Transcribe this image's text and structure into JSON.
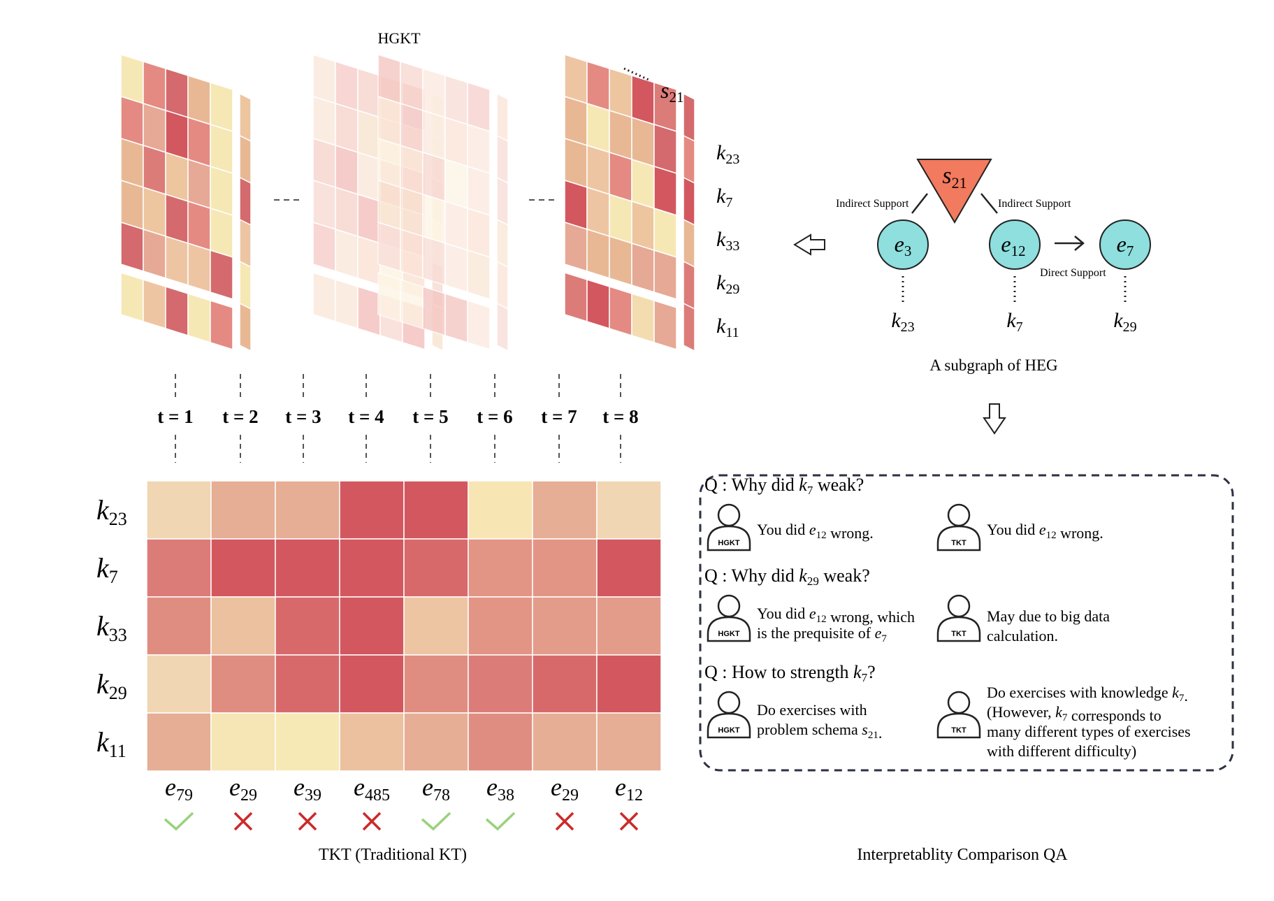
{
  "top": {
    "title": "HGKT",
    "skill_labels": [
      {
        "base": "k",
        "sub": "23"
      },
      {
        "base": "k",
        "sub": "7"
      },
      {
        "base": "k",
        "sub": "33"
      },
      {
        "base": "k",
        "sub": "29"
      },
      {
        "base": "k",
        "sub": "11"
      }
    ],
    "schema_label": {
      "base": "s",
      "sub": "21"
    },
    "steps": [
      "t = 1",
      "t = 2",
      "t = 3",
      "t = 4",
      "t = 5",
      "t = 6",
      "t = 7",
      "t = 8"
    ]
  },
  "heg": {
    "schema_node": {
      "base": "s",
      "sub": "21"
    },
    "exercises": [
      {
        "base": "e",
        "sub": "3"
      },
      {
        "base": "e",
        "sub": "12"
      },
      {
        "base": "e",
        "sub": "7"
      }
    ],
    "knowledge": [
      {
        "base": "k",
        "sub": "23"
      },
      {
        "base": "k",
        "sub": "7"
      },
      {
        "base": "k",
        "sub": "29"
      }
    ],
    "edge_left": "Indirect Support",
    "edge_right": "Indirect Support",
    "edge_direct": "Direct Support",
    "caption": "A subgraph of HEG"
  },
  "heatmap": {
    "rows": [
      {
        "base": "k",
        "sub": "23"
      },
      {
        "base": "k",
        "sub": "7"
      },
      {
        "base": "k",
        "sub": "33"
      },
      {
        "base": "k",
        "sub": "29"
      },
      {
        "base": "k",
        "sub": "11"
      }
    ],
    "cols": [
      {
        "base": "e",
        "sub": "79",
        "correct": true
      },
      {
        "base": "e",
        "sub": "29",
        "correct": false
      },
      {
        "base": "e",
        "sub": "39",
        "correct": false
      },
      {
        "base": "e",
        "sub": "485",
        "correct": false
      },
      {
        "base": "e",
        "sub": "78",
        "correct": true
      },
      {
        "base": "e",
        "sub": "38",
        "correct": true
      },
      {
        "base": "e",
        "sub": "29",
        "correct": false
      },
      {
        "base": "e",
        "sub": "12",
        "correct": false
      }
    ],
    "colors": [
      [
        "#f0d6b3",
        "#e6ae95",
        "#e6ae95",
        "#d3575f",
        "#d3575f",
        "#f7e5b4",
        "#e6ae95",
        "#f0d6b3"
      ],
      [
        "#dc7c79",
        "#d3575f",
        "#d3575f",
        "#d3575f",
        "#d8696b",
        "#e39585",
        "#e39585",
        "#d3575f"
      ],
      [
        "#e08d81",
        "#ebc19f",
        "#d8696b",
        "#d3575f",
        "#eec5a3",
        "#e39585",
        "#e39c8a",
        "#e39c8a"
      ],
      [
        "#f0d6b3",
        "#e08d81",
        "#d8696b",
        "#d3575f",
        "#e08d81",
        "#dc7c79",
        "#d8696b",
        "#d3575f"
      ],
      [
        "#e6ae95",
        "#f6e6b5",
        "#f7e9b5",
        "#ebc19f",
        "#e6ae95",
        "#e08d81",
        "#e6ae95",
        "#e6ae95"
      ]
    ],
    "caption": "TKT (Traditional KT)"
  },
  "qa": {
    "caption": "Interpretablity Comparison QA",
    "badge_hgkt": "HGKT",
    "badge_tkt": "TKT",
    "items": [
      {
        "q_pre": "Q : Why did ",
        "q_base": "k",
        "q_sub": "7",
        "q_post": " weak?",
        "hgkt": [
          "You did e12 wrong."
        ],
        "tkt": [
          "You did e12 wrong."
        ]
      },
      {
        "q_pre": "Q : Why did ",
        "q_base": "k",
        "q_sub": "29",
        "q_post": " weak?",
        "hgkt": [
          "You did e12 wrong, which",
          "is the prequisite of e7"
        ],
        "tkt": [
          "May due to big data",
          "calculation."
        ]
      },
      {
        "q_pre": "Q : How to strength ",
        "q_base": "k",
        "q_sub": "7",
        "q_post": "?",
        "hgkt": [
          "Do exercises with",
          "problem schema s21."
        ],
        "tkt": [
          "Do exercises with knowledge k7.",
          "(However, k7 corresponds to",
          "many different types of exercises",
          "with different difficulty)"
        ]
      }
    ]
  }
}
